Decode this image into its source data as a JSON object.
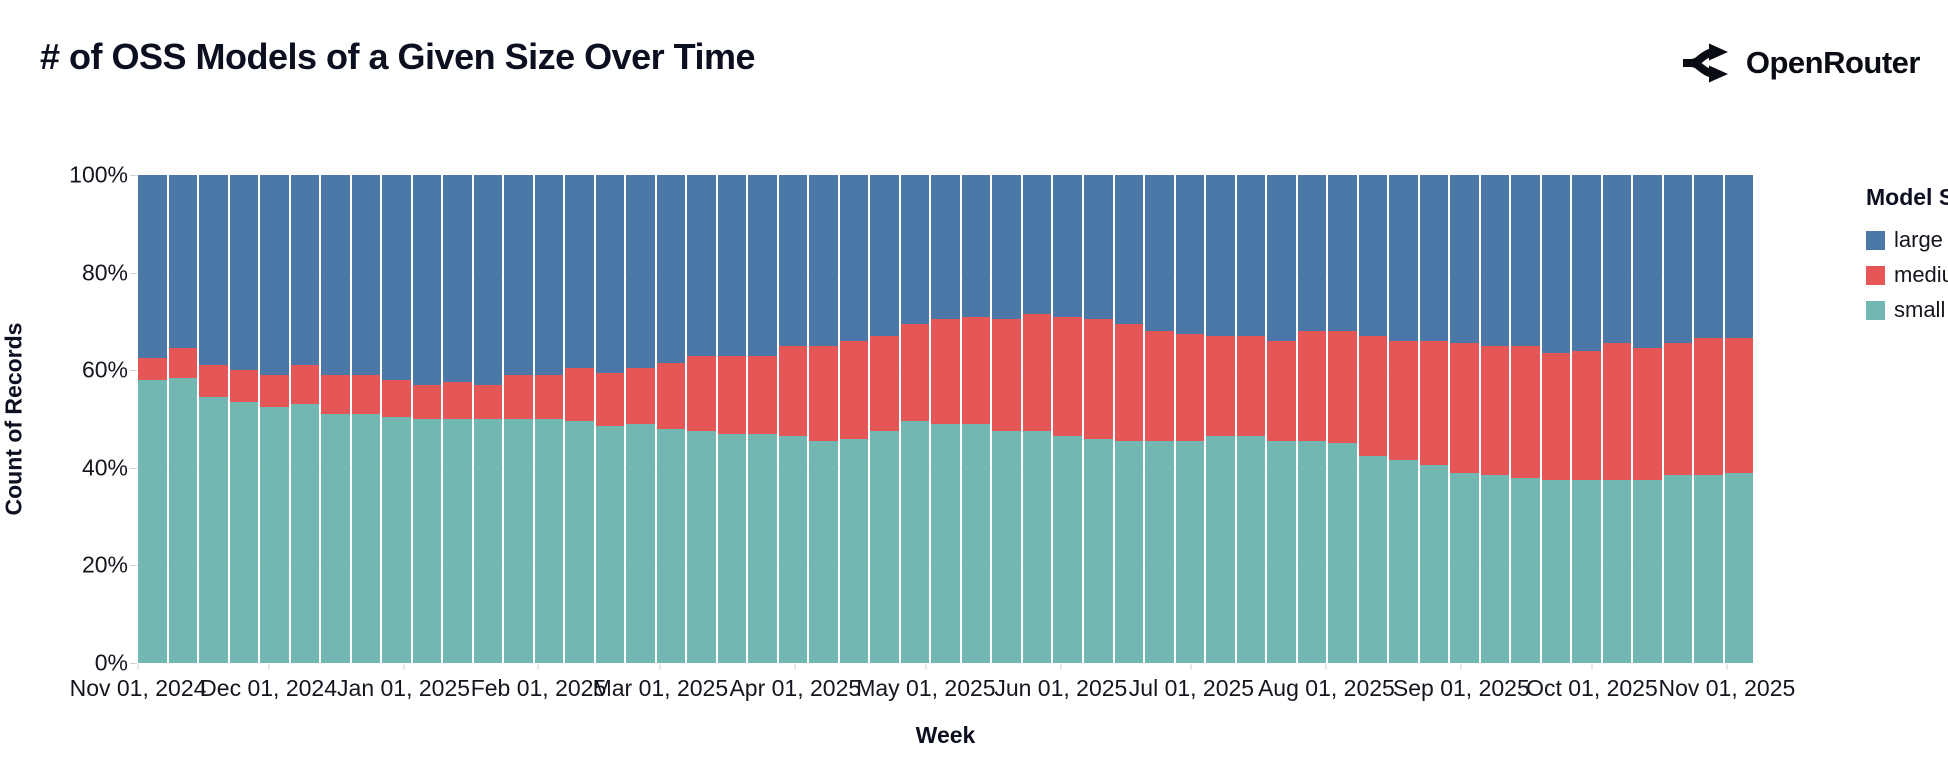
{
  "header": {
    "title": "# of OSS Models of a Given Size Over Time",
    "brand": "OpenRouter"
  },
  "colors": {
    "large": "#4c78a8",
    "medium": "#e45756",
    "small": "#72b7b2",
    "text": "#14161f",
    "axis_tick": "#ccd0d8",
    "grid": "#eceef4"
  },
  "legend": {
    "title": "Model Size",
    "entries": [
      {
        "key": "large",
        "label": "large"
      },
      {
        "key": "medium",
        "label": "medium"
      },
      {
        "key": "small",
        "label": "small"
      }
    ]
  },
  "y_axis": {
    "title": "Count of Records",
    "ticks": [
      {
        "label": "0%",
        "value": 0
      },
      {
        "label": "20%",
        "value": 20
      },
      {
        "label": "40%",
        "value": 40
      },
      {
        "label": "60%",
        "value": 60
      },
      {
        "label": "80%",
        "value": 80
      },
      {
        "label": "100%",
        "value": 100
      }
    ]
  },
  "x_axis": {
    "title": "Week",
    "total_days": 371,
    "ticks": [
      {
        "label": "Nov 01, 2024",
        "day": 0
      },
      {
        "label": "Dec 01, 2024",
        "day": 30
      },
      {
        "label": "Jan 01, 2025",
        "day": 61
      },
      {
        "label": "Feb 01, 2025",
        "day": 92
      },
      {
        "label": "Mar 01, 2025",
        "day": 120
      },
      {
        "label": "Apr 01, 2025",
        "day": 151
      },
      {
        "label": "May 01, 2025",
        "day": 181
      },
      {
        "label": "Jun 01, 2025",
        "day": 212
      },
      {
        "label": "Jul 01, 2025",
        "day": 242
      },
      {
        "label": "Aug 01, 2025",
        "day": 273
      },
      {
        "label": "Sep 01, 2025",
        "day": 304
      },
      {
        "label": "Oct 01, 2025",
        "day": 334
      },
      {
        "label": "Nov 01, 2025",
        "day": 365
      }
    ]
  },
  "chart_data": {
    "type": "bar",
    "stacked": true,
    "normalized_percent": true,
    "title": "# of OSS Models of a Given Size Over Time",
    "xlabel": "Week",
    "ylabel": "Count of Records",
    "ylim": [
      0,
      100
    ],
    "legend_position": "right",
    "grid": true,
    "stack_order_bottom_to_top": [
      "small",
      "medium",
      "large"
    ],
    "weeks": [
      {
        "week": "2024-11-01",
        "small": 58.0,
        "medium": 4.5,
        "large": 37.5
      },
      {
        "week": "2024-11-08",
        "small": 58.5,
        "medium": 6.0,
        "large": 35.5
      },
      {
        "week": "2024-11-15",
        "small": 54.5,
        "medium": 6.5,
        "large": 39.0
      },
      {
        "week": "2024-11-22",
        "small": 53.5,
        "medium": 6.5,
        "large": 40.0
      },
      {
        "week": "2024-11-29",
        "small": 52.5,
        "medium": 6.5,
        "large": 41.0
      },
      {
        "week": "2024-12-06",
        "small": 53.0,
        "medium": 8.0,
        "large": 39.0
      },
      {
        "week": "2024-12-13",
        "small": 51.0,
        "medium": 8.0,
        "large": 41.0
      },
      {
        "week": "2024-12-20",
        "small": 51.0,
        "medium": 8.0,
        "large": 41.0
      },
      {
        "week": "2024-12-27",
        "small": 50.5,
        "medium": 7.5,
        "large": 42.0
      },
      {
        "week": "2025-01-03",
        "small": 50.0,
        "medium": 7.0,
        "large": 43.0
      },
      {
        "week": "2025-01-10",
        "small": 50.0,
        "medium": 7.5,
        "large": 42.5
      },
      {
        "week": "2025-01-17",
        "small": 50.0,
        "medium": 7.0,
        "large": 43.0
      },
      {
        "week": "2025-01-24",
        "small": 50.0,
        "medium": 9.0,
        "large": 41.0
      },
      {
        "week": "2025-01-31",
        "small": 50.0,
        "medium": 9.0,
        "large": 41.0
      },
      {
        "week": "2025-02-07",
        "small": 49.5,
        "medium": 11.0,
        "large": 39.5
      },
      {
        "week": "2025-02-14",
        "small": 48.5,
        "medium": 11.0,
        "large": 40.5
      },
      {
        "week": "2025-02-21",
        "small": 49.0,
        "medium": 11.5,
        "large": 39.5
      },
      {
        "week": "2025-02-28",
        "small": 48.0,
        "medium": 13.5,
        "large": 38.5
      },
      {
        "week": "2025-03-07",
        "small": 47.5,
        "medium": 15.5,
        "large": 37.0
      },
      {
        "week": "2025-03-14",
        "small": 47.0,
        "medium": 16.0,
        "large": 37.0
      },
      {
        "week": "2025-03-21",
        "small": 47.0,
        "medium": 16.0,
        "large": 37.0
      },
      {
        "week": "2025-03-28",
        "small": 46.5,
        "medium": 18.5,
        "large": 35.0
      },
      {
        "week": "2025-04-04",
        "small": 45.5,
        "medium": 19.5,
        "large": 35.0
      },
      {
        "week": "2025-04-11",
        "small": 46.0,
        "medium": 20.0,
        "large": 34.0
      },
      {
        "week": "2025-04-18",
        "small": 47.5,
        "medium": 19.5,
        "large": 33.0
      },
      {
        "week": "2025-04-25",
        "small": 49.5,
        "medium": 20.0,
        "large": 30.5
      },
      {
        "week": "2025-05-02",
        "small": 49.0,
        "medium": 21.5,
        "large": 29.5
      },
      {
        "week": "2025-05-09",
        "small": 49.0,
        "medium": 22.0,
        "large": 29.0
      },
      {
        "week": "2025-05-16",
        "small": 47.5,
        "medium": 23.0,
        "large": 29.5
      },
      {
        "week": "2025-05-23",
        "small": 47.5,
        "medium": 24.0,
        "large": 28.5
      },
      {
        "week": "2025-05-30",
        "small": 46.5,
        "medium": 24.5,
        "large": 29.0
      },
      {
        "week": "2025-06-06",
        "small": 46.0,
        "medium": 24.5,
        "large": 29.5
      },
      {
        "week": "2025-06-13",
        "small": 45.5,
        "medium": 24.0,
        "large": 30.5
      },
      {
        "week": "2025-06-20",
        "small": 45.5,
        "medium": 22.5,
        "large": 32.0
      },
      {
        "week": "2025-06-27",
        "small": 45.5,
        "medium": 22.0,
        "large": 32.5
      },
      {
        "week": "2025-07-04",
        "small": 46.5,
        "medium": 20.5,
        "large": 33.0
      },
      {
        "week": "2025-07-11",
        "small": 46.5,
        "medium": 20.5,
        "large": 33.0
      },
      {
        "week": "2025-07-18",
        "small": 45.5,
        "medium": 20.5,
        "large": 34.0
      },
      {
        "week": "2025-07-25",
        "small": 45.5,
        "medium": 22.5,
        "large": 32.0
      },
      {
        "week": "2025-08-01",
        "small": 45.0,
        "medium": 23.0,
        "large": 32.0
      },
      {
        "week": "2025-08-08",
        "small": 42.5,
        "medium": 24.5,
        "large": 33.0
      },
      {
        "week": "2025-08-15",
        "small": 41.5,
        "medium": 24.5,
        "large": 34.0
      },
      {
        "week": "2025-08-22",
        "small": 40.5,
        "medium": 25.5,
        "large": 34.0
      },
      {
        "week": "2025-08-29",
        "small": 39.0,
        "medium": 26.5,
        "large": 34.5
      },
      {
        "week": "2025-09-05",
        "small": 38.5,
        "medium": 26.5,
        "large": 35.0
      },
      {
        "week": "2025-09-12",
        "small": 38.0,
        "medium": 27.0,
        "large": 35.0
      },
      {
        "week": "2025-09-19",
        "small": 37.5,
        "medium": 26.0,
        "large": 36.5
      },
      {
        "week": "2025-09-26",
        "small": 37.5,
        "medium": 26.5,
        "large": 36.0
      },
      {
        "week": "2025-10-03",
        "small": 37.5,
        "medium": 28.0,
        "large": 34.5
      },
      {
        "week": "2025-10-10",
        "small": 37.5,
        "medium": 27.0,
        "large": 35.5
      },
      {
        "week": "2025-10-17",
        "small": 38.5,
        "medium": 27.0,
        "large": 34.5
      },
      {
        "week": "2025-10-24",
        "small": 38.5,
        "medium": 28.0,
        "large": 33.5
      },
      {
        "week": "2025-10-31",
        "small": 39.0,
        "medium": 27.5,
        "large": 33.5
      }
    ]
  }
}
